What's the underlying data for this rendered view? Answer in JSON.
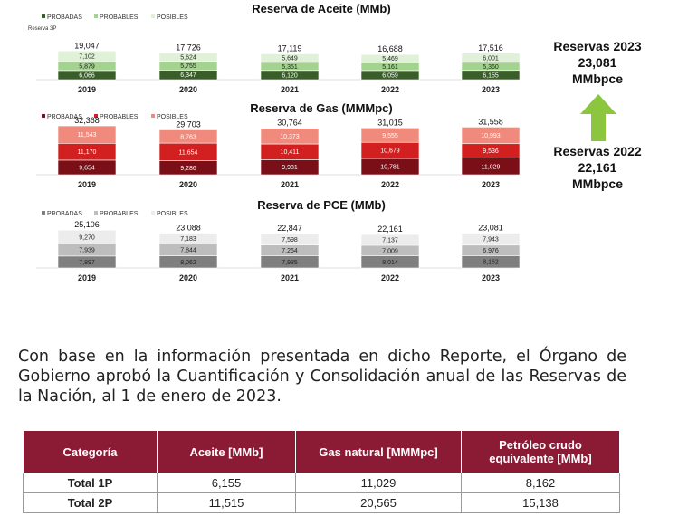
{
  "charts": [
    {
      "id": "aceite",
      "title": "Reserva de Aceite (MMb)",
      "legend": [
        "PROBADAS",
        "PROBABLES",
        "POSIBLES"
      ],
      "years": [
        "2019",
        "2020",
        "2021",
        "2022",
        "2023"
      ],
      "totals": [
        "19,047",
        "17,726",
        "17,119",
        "16,688",
        "17,516"
      ],
      "probadas": [
        6066,
        6347,
        6120,
        6059,
        6155
      ],
      "probables": [
        5879,
        5755,
        5351,
        5161,
        5360
      ],
      "posibles": [
        7102,
        5624,
        5649,
        5469,
        6001
      ],
      "labels": {
        "probadas": [
          "6,066",
          "6,347",
          "6,120",
          "6,059",
          "6,155"
        ],
        "probables": [
          "5,879",
          "5,755",
          "5,351",
          "5,161",
          "5,360"
        ],
        "posibles": [
          "7,102",
          "5,624",
          "5,649",
          "5,469",
          "6,001"
        ]
      },
      "extra_label": "Reserva 3P",
      "colors": [
        "#3a5e2a",
        "#a3d38e",
        "#dff1d6"
      ]
    },
    {
      "id": "gas",
      "title": "Reserva de Gas (MMMpc)",
      "legend": [
        "PROBADAS",
        "PROBABLES",
        "POSIBLES"
      ],
      "years": [
        "2019",
        "2020",
        "2021",
        "2022",
        "2023"
      ],
      "totals": [
        "32,368",
        "29,703",
        "30,764",
        "31,015",
        "31,558"
      ],
      "probadas": [
        9654,
        9286,
        9981,
        10781,
        11029
      ],
      "probables": [
        11170,
        11654,
        10411,
        10679,
        9536
      ],
      "posibles": [
        11543,
        8763,
        10373,
        9555,
        10993
      ],
      "labels": {
        "probadas": [
          "9,654",
          "9,286",
          "9,981",
          "10,781",
          "11,029"
        ],
        "probables": [
          "11,170",
          "11,654",
          "10,411",
          "10,679",
          "9,536"
        ],
        "posibles": [
          "11,543",
          "8,763",
          "10,373",
          "9,555",
          "10,993"
        ]
      },
      "colors": [
        "#7a0f17",
        "#d21f1f",
        "#f08a7c"
      ]
    },
    {
      "id": "pce",
      "title": "Reserva de PCE (MMb)",
      "legend": [
        "PROBADAS",
        "PROBABLES",
        "POSIBLES"
      ],
      "years": [
        "2019",
        "2020",
        "2021",
        "2022",
        "2023"
      ],
      "totals": [
        "25,106",
        "23,088",
        "22,847",
        "22,161",
        "23,081"
      ],
      "probadas": [
        7897,
        8062,
        7985,
        8014,
        8162
      ],
      "probables": [
        7939,
        7844,
        7264,
        7009,
        6976
      ],
      "posibles": [
        9270,
        7183,
        7598,
        7137,
        7943
      ],
      "labels": {
        "probadas": [
          "7,897",
          "8,062",
          "7,985",
          "8,014",
          "8,162"
        ],
        "probables": [
          "7,939",
          "7,844",
          "7,264",
          "7,009",
          "6,976"
        ],
        "posibles": [
          "9,270",
          "7,183",
          "7,598",
          "7,137",
          "7,943"
        ]
      },
      "colors": [
        "#7f7f7f",
        "#bdbdbd",
        "#ececec"
      ]
    }
  ],
  "reservas_2023": {
    "line1": "Reservas 2023",
    "line2": "23,081",
    "line3": "MMbpce"
  },
  "reservas_2022": {
    "line1": "Reservas 2022",
    "line2": "22,161",
    "line3": "MMbpce"
  },
  "arrow_color": "#8cc63f",
  "paragraph": "Con base en la información presentada en dicho Reporte, el Órgano de Gobierno aprobó la Cuantificación y Consolidación anual de las Reservas de la Nación, al 1 de enero de 2023.",
  "table": {
    "headers": [
      "Categoría",
      "Aceite [MMb]",
      "Gas natural [MMMpc]",
      "Petróleo crudo equivalente [MMb]"
    ],
    "rows": [
      [
        "Total 1P",
        "6,155",
        "11,029",
        "8,162"
      ],
      [
        "Total 2P",
        "11,515",
        "20,565",
        "15,138"
      ]
    ],
    "header_color": "#8b1a35"
  }
}
